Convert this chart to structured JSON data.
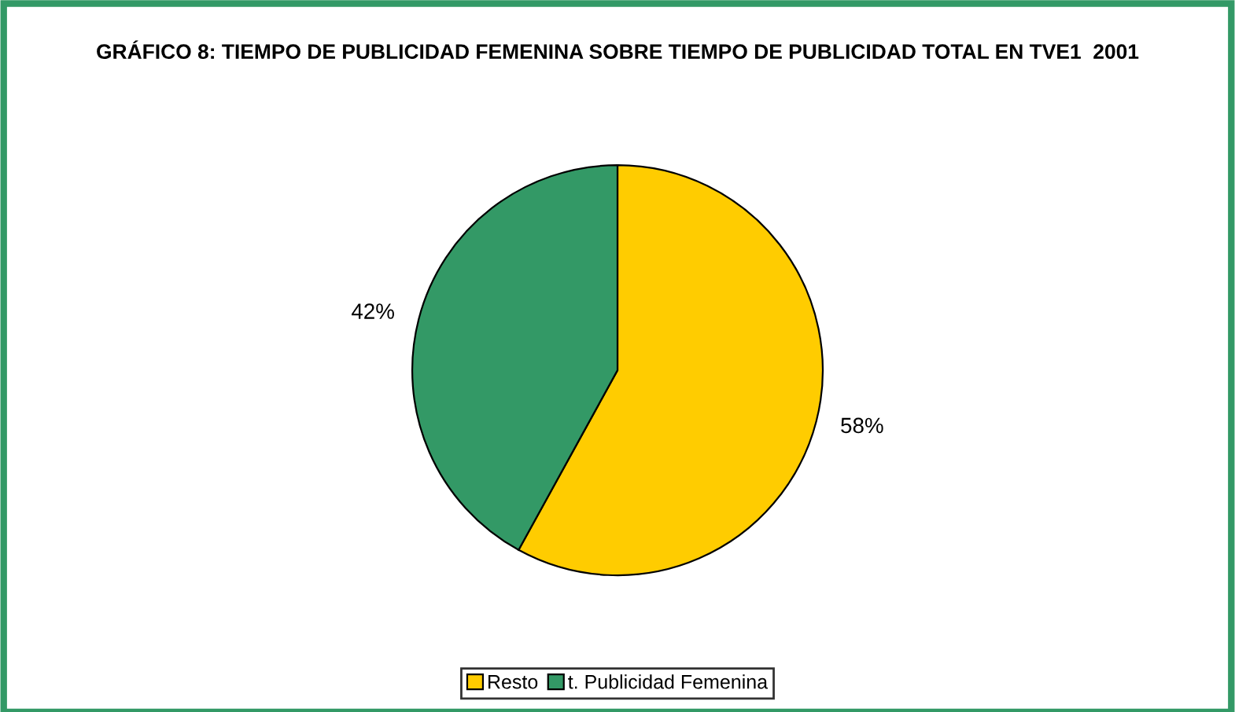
{
  "chart_data": {
    "type": "pie",
    "title": "GRÁFICO 8: TIEMPO DE PUBLICIDAD FEMENINA SOBRE TIEMPO DE PUBLICIDAD TOTAL EN TVE1  2001",
    "categories": [
      "Resto",
      "t. Publicidad Femenina"
    ],
    "values": [
      58,
      42
    ],
    "colors": [
      "#ffcc00",
      "#339966"
    ],
    "value_labels": [
      "58%",
      "42%"
    ],
    "legend": "bottom"
  }
}
